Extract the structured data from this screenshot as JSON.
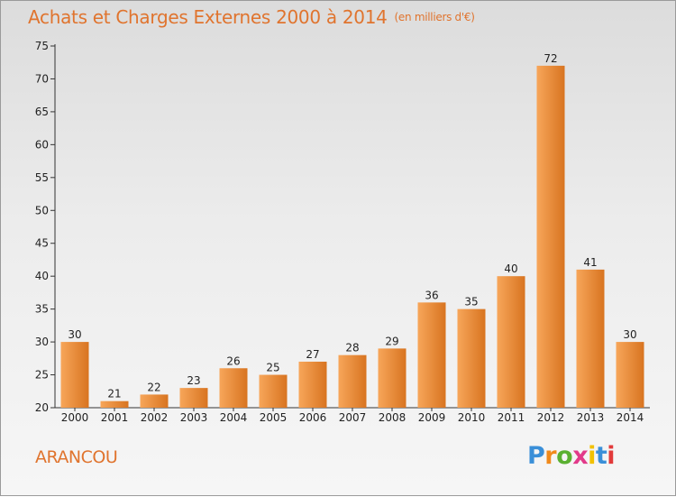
{
  "header": {
    "title": "Achats et Charges Externes 2000 à 2014",
    "unit": "(en milliers d'€)"
  },
  "place": "ARANCOU",
  "logo": {
    "letters": [
      "P",
      "r",
      "o",
      "x",
      "i",
      "t",
      "i"
    ],
    "colors": [
      "#3a8fd8",
      "#f08a1c",
      "#5ab031",
      "#e23a8a",
      "#f2c100",
      "#3a8fd8",
      "#e23a3a"
    ]
  },
  "chart_data": {
    "type": "bar",
    "title": "Achats et Charges Externes 2000 à 2014",
    "subtitle": "(en milliers d'€)",
    "categories": [
      "2000",
      "2001",
      "2002",
      "2003",
      "2004",
      "2005",
      "2006",
      "2007",
      "2008",
      "2009",
      "2010",
      "2011",
      "2012",
      "2013",
      "2014"
    ],
    "values": [
      30,
      21,
      22,
      23,
      26,
      25,
      27,
      28,
      29,
      36,
      35,
      40,
      72,
      41,
      30
    ],
    "ylim": [
      20,
      75
    ],
    "yticks": [
      20,
      25,
      30,
      35,
      40,
      45,
      50,
      55,
      60,
      65,
      70,
      75
    ],
    "grid": false,
    "colors": {
      "bar_light": "#f7a65a",
      "bar_dark": "#d87420",
      "accent": "#e0742e"
    }
  }
}
